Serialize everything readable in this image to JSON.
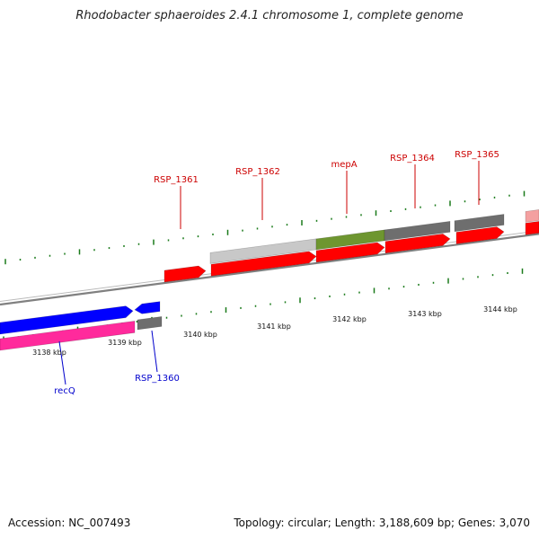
{
  "title": "Rhodobacter sphaeroides 2.4.1 chromosome 1, complete genome",
  "footer": {
    "accession": "Accession: NC_007493",
    "summary": "Topology: circular; Length: 3,188,609 bp; Genes: 3,070"
  },
  "colors": {
    "forward_gene": "#ff0000",
    "reverse_gene_blue": "#0000ff",
    "reverse_gene_pink": "#ff2a9c",
    "grey_feature": "#6e6e6e",
    "light_grey_feature": "#c8c8c8",
    "green_feature": "#6e9630",
    "forward_label": "#cc0000",
    "reverse_label": "#0000cc",
    "tick": "#1a7a1a",
    "backbone": "#808080"
  },
  "kbp_ticks": [
    "3138 kbp",
    "3139 kbp",
    "3140 kbp",
    "3141 kbp",
    "3142 kbp",
    "3143 kbp",
    "3144 kbp"
  ],
  "gene_labels": {
    "forward": [
      "RSP_1361",
      "RSP_1362",
      "mepA",
      "RSP_1364",
      "RSP_1365"
    ],
    "reverse": [
      "recQ",
      "RSP_1360"
    ]
  }
}
